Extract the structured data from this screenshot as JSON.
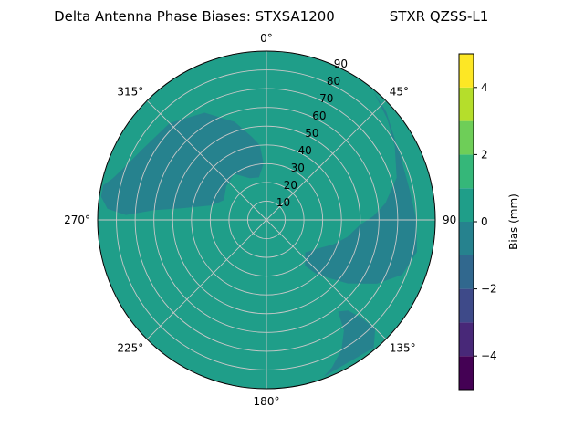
{
  "chart_data": {
    "type": "heatmap",
    "projection": "polar",
    "title_left": "Delta Antenna Phase Biases: STXSA1200",
    "title_right": "STXR QZSS-L1",
    "azimuth_direction": "clockwise",
    "zero_direction": "top",
    "azimuth_ticks": [
      {
        "deg": 0,
        "label": "0°"
      },
      {
        "deg": 45,
        "label": "45°"
      },
      {
        "deg": 90,
        "label": "90"
      },
      {
        "deg": 135,
        "label": "135°"
      },
      {
        "deg": 180,
        "label": "180°"
      },
      {
        "deg": 225,
        "label": "225°"
      },
      {
        "deg": 270,
        "label": "270°"
      },
      {
        "deg": 315,
        "label": "315°"
      }
    ],
    "radial_ticks": [
      {
        "value": 10,
        "label": "10"
      },
      {
        "value": 20,
        "label": "20"
      },
      {
        "value": 30,
        "label": "30"
      },
      {
        "value": 40,
        "label": "40"
      },
      {
        "value": 50,
        "label": "50"
      },
      {
        "value": 60,
        "label": "60"
      },
      {
        "value": 70,
        "label": "70"
      },
      {
        "value": 80,
        "label": "80"
      },
      {
        "value": 90,
        "label": "90"
      }
    ],
    "radial_range": [
      0,
      90
    ],
    "grid": true,
    "colorbar": {
      "label": "Bias (mm)",
      "range": [
        -5,
        5
      ],
      "ticks": [
        {
          "value": -4,
          "label": "−4"
        },
        {
          "value": -2,
          "label": "−2"
        },
        {
          "value": 0,
          "label": "0"
        },
        {
          "value": 2,
          "label": "2"
        },
        {
          "value": 4,
          "label": "4"
        }
      ],
      "levels": [
        {
          "from": -5,
          "to": -4,
          "color": "#440154"
        },
        {
          "from": -4,
          "to": -3,
          "color": "#482878"
        },
        {
          "from": -3,
          "to": -2,
          "color": "#3e4a89"
        },
        {
          "from": -2,
          "to": -1,
          "color": "#31688e"
        },
        {
          "from": -1,
          "to": 0,
          "color": "#26828e"
        },
        {
          "from": 0,
          "to": 1,
          "color": "#1f9e89"
        },
        {
          "from": 1,
          "to": 2,
          "color": "#35b779"
        },
        {
          "from": 2,
          "to": 3,
          "color": "#6ece58"
        },
        {
          "from": 3,
          "to": 4,
          "color": "#b5de2b"
        },
        {
          "from": 4,
          "to": 5,
          "color": "#fde725"
        }
      ]
    },
    "background_level": {
      "from": 0,
      "to": 1
    },
    "regions": [
      {
        "name": "nw-arc",
        "level": {
          "from": -1,
          "to": 0
        },
        "boundary": [
          [
            282,
            89
          ],
          [
            285,
            85
          ],
          [
            290,
            81
          ],
          [
            300,
            76
          ],
          [
            315,
            73
          ],
          [
            330,
            66
          ],
          [
            342,
            55
          ],
          [
            350,
            45
          ],
          [
            355,
            40
          ],
          [
            357,
            30
          ],
          [
            350,
            23
          ],
          [
            338,
            24
          ],
          [
            325,
            30
          ],
          [
            310,
            28
          ],
          [
            295,
            25
          ],
          [
            285,
            30
          ],
          [
            278,
            45
          ],
          [
            275,
            60
          ],
          [
            272,
            75
          ],
          [
            274,
            85
          ],
          [
            278,
            89
          ]
        ]
      },
      {
        "name": "east-arc",
        "level": {
          "from": -1,
          "to": 0
        },
        "boundary": [
          [
            40,
            89
          ],
          [
            48,
            86
          ],
          [
            55,
            82
          ],
          [
            65,
            79
          ],
          [
            78,
            78
          ],
          [
            90,
            80
          ],
          [
            102,
            82
          ],
          [
            112,
            78
          ],
          [
            120,
            68
          ],
          [
            128,
            55
          ],
          [
            137,
            40
          ],
          [
            140,
            32
          ],
          [
            130,
            27
          ],
          [
            118,
            32
          ],
          [
            110,
            38
          ],
          [
            102,
            44
          ],
          [
            93,
            50
          ],
          [
            88,
            57
          ],
          [
            82,
            64
          ],
          [
            72,
            73
          ],
          [
            60,
            79
          ],
          [
            50,
            84
          ]
        ]
      },
      {
        "name": "se-pocket",
        "level": {
          "from": -1,
          "to": 0
        },
        "boundary": [
          [
            142,
            62
          ],
          [
            145,
            72
          ],
          [
            150,
            80
          ],
          [
            156,
            86
          ],
          [
            160,
            89
          ],
          [
            140,
            89
          ],
          [
            135,
            82
          ],
          [
            136,
            72
          ],
          [
            138,
            65
          ]
        ]
      }
    ]
  }
}
